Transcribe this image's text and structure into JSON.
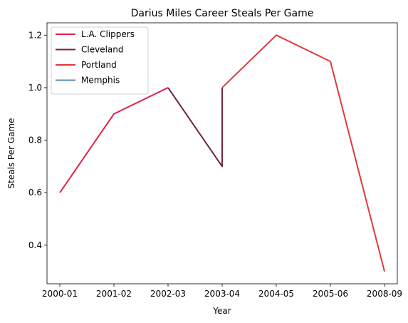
{
  "chart_data": {
    "type": "line",
    "title": "Darius Miles Career Steals Per Game",
    "xlabel": "Year",
    "ylabel": "Steals Per Game",
    "categories": [
      "2000-01",
      "2001-02",
      "2002-03",
      "2003-04",
      "2004-05",
      "2005-06",
      "2008-09"
    ],
    "ylim": [
      0.253,
      1.247
    ],
    "yticks": [
      0.4,
      0.6,
      0.8,
      1.0,
      1.2
    ],
    "ytick_labels": [
      "0.4",
      "0.6",
      "0.8",
      "1.0",
      "1.2"
    ],
    "grid": false,
    "legend_position": "top-left",
    "series": [
      {
        "name": "L.A. Clippers",
        "color": "#e0204a",
        "points": [
          {
            "x": "2000-01",
            "y": 0.6
          },
          {
            "x": "2001-02",
            "y": 0.9
          },
          {
            "x": "2002-03",
            "y": 1.0
          }
        ]
      },
      {
        "name": "Cleveland",
        "color": "#6f2345",
        "points": [
          {
            "x": "2002-03",
            "y": 1.0
          },
          {
            "x": "2003-04",
            "y": 0.7
          },
          {
            "x": "2003-04",
            "y": 1.0
          }
        ]
      },
      {
        "name": "Portland",
        "color": "#e0393e",
        "points": [
          {
            "x": "2003-04",
            "y": 1.0
          },
          {
            "x": "2004-05",
            "y": 1.2
          },
          {
            "x": "2005-06",
            "y": 1.1
          },
          {
            "x": "2008-09",
            "y": 0.3
          }
        ]
      },
      {
        "name": "Memphis",
        "color": "#5d8ab4",
        "points": []
      }
    ]
  }
}
